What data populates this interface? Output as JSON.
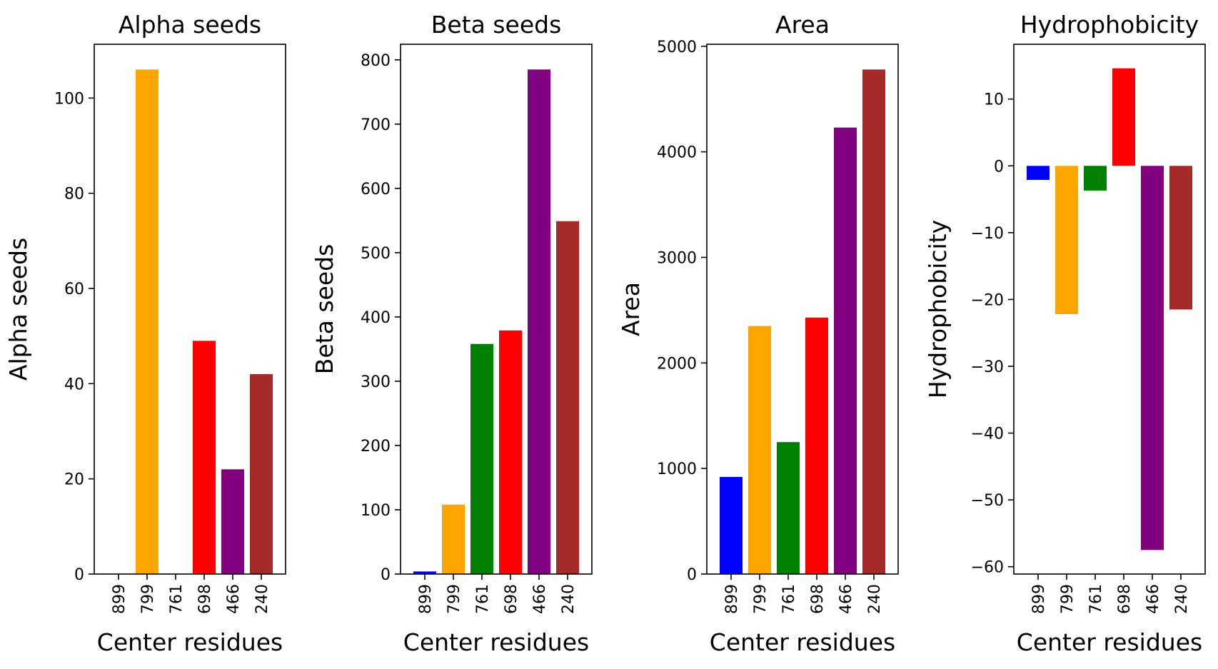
{
  "chart_data": [
    {
      "type": "bar",
      "title": "Alpha seeds",
      "xlabel": "Center residues",
      "ylabel": "Alpha seeds",
      "categories": [
        "899",
        "799",
        "761",
        "698",
        "466",
        "240"
      ],
      "values": [
        0,
        106,
        0,
        49,
        22,
        42
      ],
      "colors": [
        "#0000ff",
        "#ffa500",
        "#008000",
        "#ff0000",
        "#800080",
        "#a52a2a"
      ],
      "ylim": [
        0,
        111.3
      ],
      "yticks": [
        0,
        20,
        40,
        60,
        80,
        100
      ],
      "ytick_labels": [
        "0",
        "20",
        "40",
        "60",
        "80",
        "100"
      ]
    },
    {
      "type": "bar",
      "title": "Beta seeds",
      "xlabel": "Center residues",
      "ylabel": "Beta seeds",
      "categories": [
        "899",
        "799",
        "761",
        "698",
        "466",
        "240"
      ],
      "values": [
        4,
        108,
        358,
        379,
        785,
        549
      ],
      "colors": [
        "#0000ff",
        "#ffa500",
        "#008000",
        "#ff0000",
        "#800080",
        "#a52a2a"
      ],
      "ylim": [
        0,
        824.25
      ],
      "yticks": [
        0,
        100,
        200,
        300,
        400,
        500,
        600,
        700,
        800
      ],
      "ytick_labels": [
        "0",
        "100",
        "200",
        "300",
        "400",
        "500",
        "600",
        "700",
        "800"
      ]
    },
    {
      "type": "bar",
      "title": "Area",
      "xlabel": "Center residues",
      "ylabel": "Area",
      "categories": [
        "899",
        "799",
        "761",
        "698",
        "466",
        "240"
      ],
      "values": [
        920,
        2350,
        1250,
        2430,
        4230,
        4780
      ],
      "colors": [
        "#0000ff",
        "#ffa500",
        "#008000",
        "#ff0000",
        "#800080",
        "#a52a2a"
      ],
      "ylim": [
        0,
        5019
      ],
      "yticks": [
        0,
        1000,
        2000,
        3000,
        4000,
        5000
      ],
      "ytick_labels": [
        "0",
        "1000",
        "2000",
        "3000",
        "4000",
        "5000"
      ]
    },
    {
      "type": "bar",
      "title": "Hydrophobicity",
      "xlabel": "Center residues",
      "ylabel": "Hydrophobicity",
      "categories": [
        "899",
        "799",
        "761",
        "698",
        "466",
        "240"
      ],
      "values": [
        -2.1,
        -22.2,
        -3.7,
        14.6,
        -57.5,
        -21.5
      ],
      "colors": [
        "#0000ff",
        "#ffa500",
        "#008000",
        "#ff0000",
        "#800080",
        "#a52a2a"
      ],
      "ylim": [
        -61.1,
        18.2
      ],
      "yticks": [
        10,
        0,
        -10,
        -20,
        -30,
        -40,
        -50,
        -60
      ],
      "ytick_labels": [
        "10",
        "0",
        "−10",
        "−20",
        "−30",
        "−40",
        "−50",
        "−60"
      ]
    }
  ]
}
